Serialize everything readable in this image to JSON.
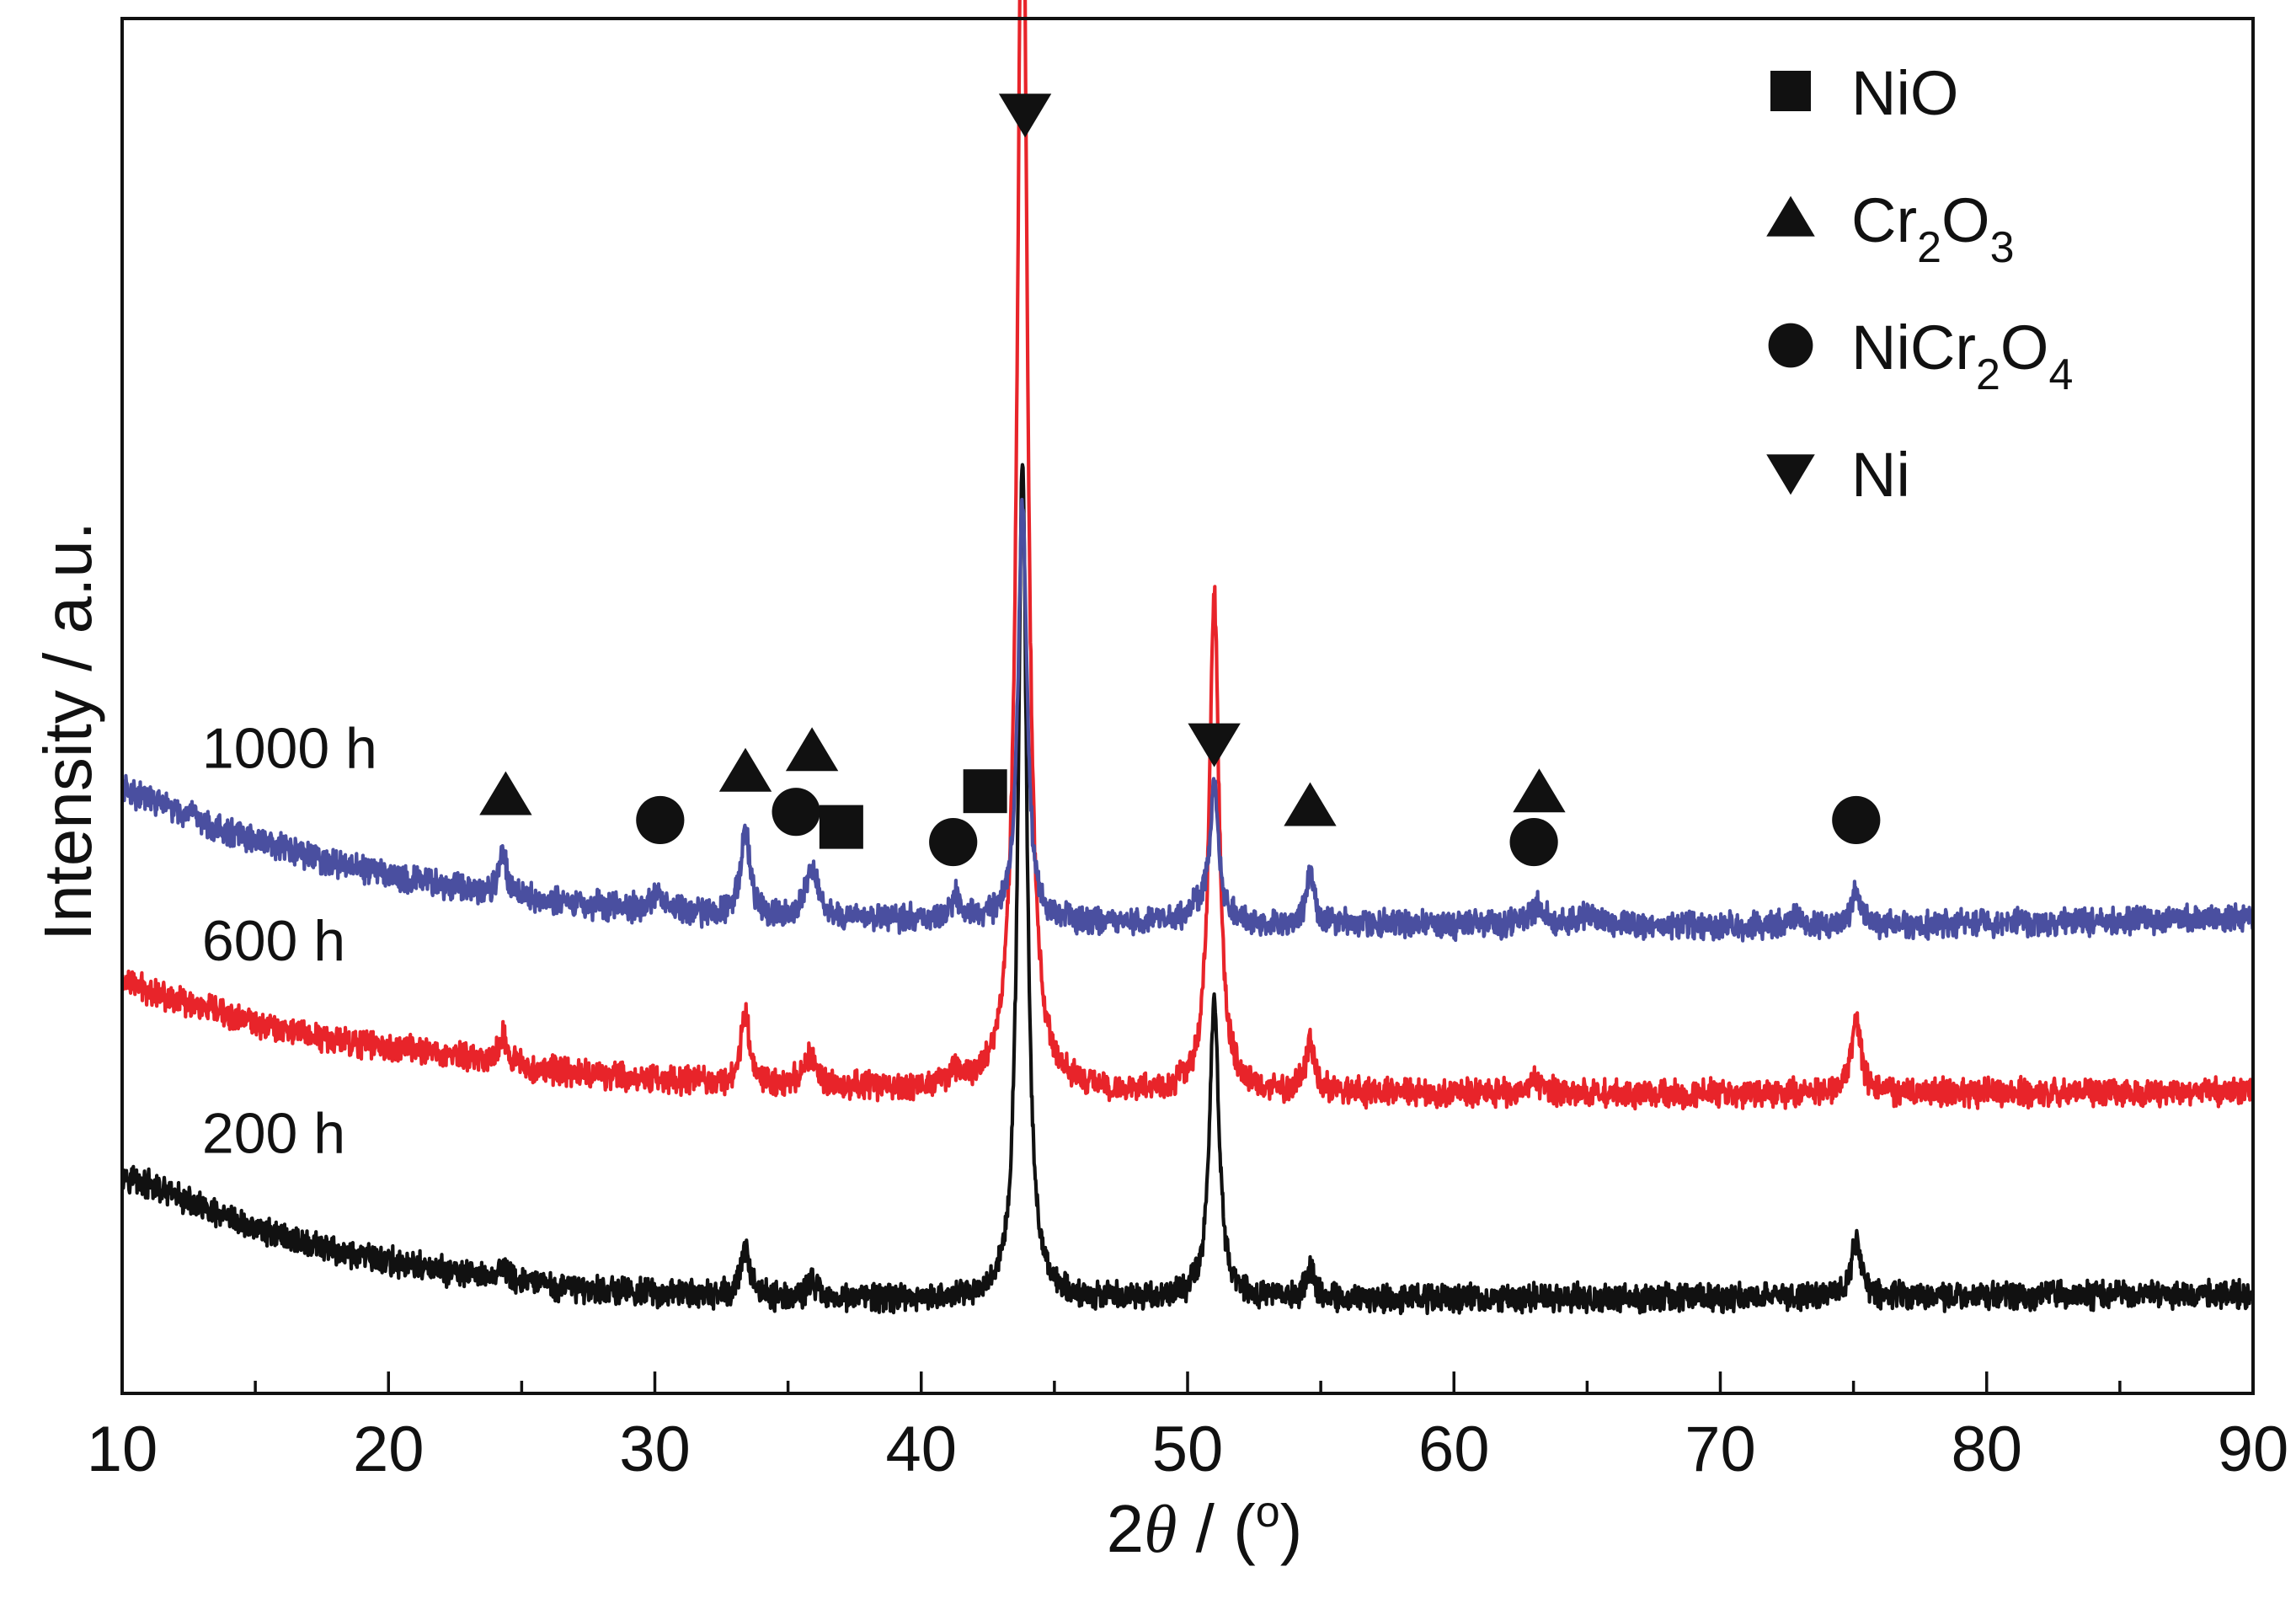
{
  "chart_data": {
    "type": "line",
    "xlabel": {
      "prefix": "2",
      "symbol": "θ",
      "suffix": " / (",
      "sup": "o",
      "close": ")"
    },
    "ylabel": "Intensity / a.u.",
    "xlim": [
      10,
      90
    ],
    "ylim": [
      0,
      100
    ],
    "x_ticks": [
      "10",
      "20",
      "30",
      "40",
      "50",
      "60",
      "70",
      "80",
      "90"
    ],
    "grid": false,
    "legend_position": "top-right",
    "legend": [
      {
        "marker": "square",
        "parts": [
          {
            "t": "NiO"
          }
        ]
      },
      {
        "marker": "triangle-up",
        "parts": [
          {
            "t": "Cr"
          },
          {
            "t": "2",
            "sub": true
          },
          {
            "t": "O"
          },
          {
            "t": "3",
            "sub": true
          }
        ]
      },
      {
        "marker": "circle",
        "parts": [
          {
            "t": "NiCr"
          },
          {
            "t": "2",
            "sub": true
          },
          {
            "t": "O"
          },
          {
            "t": "4",
            "sub": true
          }
        ]
      },
      {
        "marker": "triangle-down",
        "parts": [
          {
            "t": "Ni"
          }
        ]
      }
    ],
    "series": [
      {
        "name": "200 h",
        "color": "#111111",
        "label_x": 13,
        "label_y": 17.5,
        "baseline": [
          [
            10,
            16.0
          ],
          [
            14,
            12.6
          ],
          [
            18,
            10.3
          ],
          [
            22,
            8.9
          ],
          [
            26,
            7.8
          ],
          [
            30,
            7.3
          ],
          [
            35,
            6.9
          ],
          [
            45,
            6.8
          ],
          [
            60,
            6.9
          ],
          [
            75,
            7.0
          ],
          [
            90,
            7.3
          ]
        ],
        "peaks": [
          [
            24.3,
            1.0,
            0.2
          ],
          [
            33.4,
            3.6,
            0.2
          ],
          [
            35.9,
            1.2,
            0.25
          ],
          [
            43.8,
            61.0,
            0.2
          ],
          [
            51.0,
            21.5,
            0.22
          ],
          [
            54.6,
            2.2,
            0.18
          ],
          [
            75.1,
            4.0,
            0.22
          ]
        ]
      },
      {
        "name": "600 h",
        "color": "#e8242a",
        "label_x": 13,
        "label_y": 31.5,
        "baseline": [
          [
            10,
            30.0
          ],
          [
            14,
            27.4
          ],
          [
            18,
            25.7
          ],
          [
            22,
            24.7
          ],
          [
            26,
            23.5
          ],
          [
            30,
            22.8
          ],
          [
            35,
            22.3
          ],
          [
            45,
            21.9
          ],
          [
            60,
            21.8
          ],
          [
            75,
            21.8
          ],
          [
            90,
            21.9
          ]
        ],
        "peaks": [
          [
            24.3,
            2.1,
            0.18
          ],
          [
            33.4,
            5.0,
            0.2
          ],
          [
            35.8,
            2.2,
            0.3
          ],
          [
            41.2,
            1.0,
            0.2
          ],
          [
            43.8,
            96.0,
            0.22
          ],
          [
            51.0,
            36.0,
            0.22
          ],
          [
            54.6,
            3.5,
            0.2
          ],
          [
            63.0,
            0.8,
            0.4
          ],
          [
            75.1,
            5.2,
            0.22
          ]
        ]
      },
      {
        "name": "1000 h",
        "color": "#4a4fa0",
        "label_x": 13,
        "label_y": 45.5,
        "baseline": [
          [
            10,
            44.0
          ],
          [
            14,
            40.8
          ],
          [
            18,
            38.5
          ],
          [
            22,
            37.0
          ],
          [
            26,
            35.8
          ],
          [
            30,
            35.1
          ],
          [
            35,
            34.6
          ],
          [
            45,
            34.2
          ],
          [
            60,
            34.1
          ],
          [
            75,
            34.0
          ],
          [
            90,
            34.6
          ]
        ],
        "peaks": [
          [
            24.3,
            3.0,
            0.18
          ],
          [
            30.1,
            1.3,
            0.25
          ],
          [
            33.4,
            6.5,
            0.2
          ],
          [
            35.9,
            3.5,
            0.3
          ],
          [
            41.3,
            1.6,
            0.25
          ],
          [
            43.8,
            30.5,
            0.2
          ],
          [
            50.3,
            1.2,
            0.3
          ],
          [
            51.0,
            10.0,
            0.2
          ],
          [
            54.6,
            3.6,
            0.18
          ],
          [
            63.1,
            1.3,
            0.35
          ],
          [
            65.0,
            0.8,
            0.3
          ],
          [
            72.8,
            0.6,
            0.2
          ],
          [
            75.1,
            2.5,
            0.2
          ]
        ]
      }
    ],
    "markers": [
      {
        "type": "triangle-up",
        "x": 24.4,
        "y": 43.5
      },
      {
        "type": "circle",
        "x": 30.2,
        "y": 41.7
      },
      {
        "type": "triangle-up",
        "x": 33.4,
        "y": 45.2
      },
      {
        "type": "triangle-up",
        "x": 35.9,
        "y": 46.7
      },
      {
        "type": "circle",
        "x": 35.3,
        "y": 42.3
      },
      {
        "type": "square",
        "x": 37.0,
        "y": 41.2
      },
      {
        "type": "circle",
        "x": 41.2,
        "y": 40.1
      },
      {
        "type": "square",
        "x": 42.4,
        "y": 43.8
      },
      {
        "type": "triangle-down",
        "x": 43.9,
        "y": 93.1
      },
      {
        "type": "triangle-down",
        "x": 51.0,
        "y": 47.3
      },
      {
        "type": "triangle-up",
        "x": 54.6,
        "y": 42.7
      },
      {
        "type": "triangle-up",
        "x": 63.2,
        "y": 43.7
      },
      {
        "type": "circle",
        "x": 63.0,
        "y": 40.1
      },
      {
        "type": "circle",
        "x": 75.1,
        "y": 41.7
      }
    ]
  }
}
